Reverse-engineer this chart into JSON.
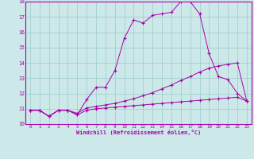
{
  "xlabel": "Windchill (Refroidissement éolien,°C)",
  "xlim": [
    -0.5,
    23.5
  ],
  "ylim": [
    10,
    18
  ],
  "xticks": [
    0,
    1,
    2,
    3,
    4,
    5,
    6,
    7,
    8,
    9,
    10,
    11,
    12,
    13,
    14,
    15,
    16,
    17,
    18,
    19,
    20,
    21,
    22,
    23
  ],
  "yticks": [
    10,
    11,
    12,
    13,
    14,
    15,
    16,
    17,
    18
  ],
  "bg_color": "#cce8e8",
  "line_color": "#aa00aa",
  "grid_color": "#99cccc",
  "line1_x": [
    0,
    1,
    2,
    3,
    4,
    5,
    6,
    7,
    8,
    9,
    10,
    11,
    12,
    13,
    14,
    15,
    16,
    17,
    18,
    19,
    20,
    21,
    22,
    23
  ],
  "line1_y": [
    10.9,
    10.9,
    10.5,
    10.9,
    10.9,
    10.6,
    11.6,
    12.4,
    12.4,
    13.5,
    15.6,
    16.8,
    16.6,
    17.1,
    17.2,
    17.3,
    18.0,
    18.0,
    17.2,
    14.6,
    13.1,
    12.9,
    12.0,
    11.5
  ],
  "line2_x": [
    0,
    1,
    2,
    3,
    4,
    5,
    6,
    7,
    8,
    9,
    10,
    11,
    12,
    13,
    14,
    15,
    16,
    17,
    18,
    19,
    20,
    21,
    22,
    23
  ],
  "line2_y": [
    10.9,
    10.9,
    10.5,
    10.9,
    10.9,
    10.7,
    11.05,
    11.15,
    11.25,
    11.35,
    11.5,
    11.65,
    11.85,
    12.05,
    12.3,
    12.55,
    12.85,
    13.1,
    13.4,
    13.65,
    13.8,
    13.9,
    14.0,
    11.5
  ],
  "line3_x": [
    0,
    1,
    2,
    3,
    4,
    5,
    6,
    7,
    8,
    9,
    10,
    11,
    12,
    13,
    14,
    15,
    16,
    17,
    18,
    19,
    20,
    21,
    22,
    23
  ],
  "line3_y": [
    10.9,
    10.9,
    10.5,
    10.9,
    10.9,
    10.6,
    10.9,
    11.0,
    11.05,
    11.1,
    11.15,
    11.2,
    11.25,
    11.3,
    11.35,
    11.4,
    11.45,
    11.5,
    11.55,
    11.6,
    11.65,
    11.7,
    11.75,
    11.5
  ]
}
